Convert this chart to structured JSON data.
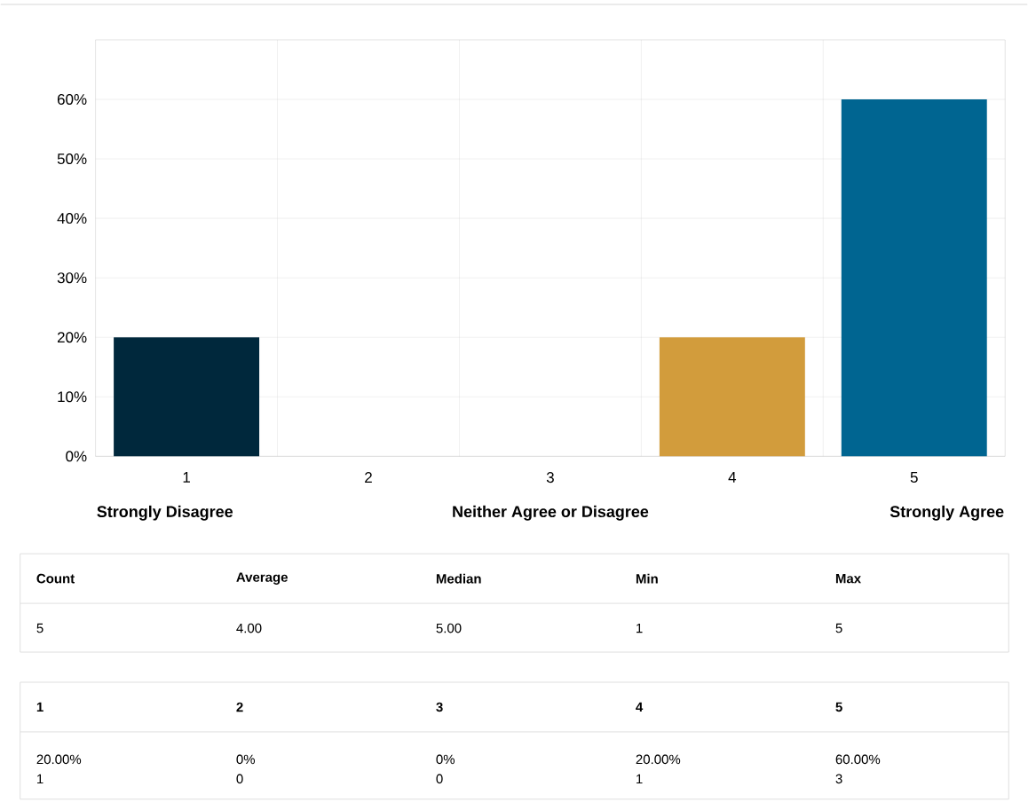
{
  "chart_data": {
    "type": "bar",
    "categories": [
      "1",
      "2",
      "3",
      "4",
      "5"
    ],
    "values": [
      20,
      0,
      0,
      20,
      60
    ],
    "colors": [
      "#00283c",
      "#00283c",
      "#00283c",
      "#d29c3c",
      "#006591"
    ],
    "ylim": [
      0,
      70
    ],
    "yticks": [
      {
        "value": 0,
        "label": "0%"
      },
      {
        "value": 10,
        "label": "10%"
      },
      {
        "value": 20,
        "label": "20%"
      },
      {
        "value": 30,
        "label": "30%"
      },
      {
        "value": 40,
        "label": "40%"
      },
      {
        "value": 50,
        "label": "50%"
      },
      {
        "value": 60,
        "label": "60%"
      }
    ],
    "grid": true,
    "annotations": [
      "Strongly Disagree",
      "Neither Agree or Disagree",
      "Strongly Agree",
      "Count",
      "Average",
      "Median",
      "Min",
      "Max",
      "5",
      "4.00",
      "5.00",
      "1",
      "5",
      "1",
      "0",
      "0",
      "1",
      "3",
      "20.00%",
      "0%",
      "0%",
      "20.00%",
      "60.00%"
    ]
  }
}
